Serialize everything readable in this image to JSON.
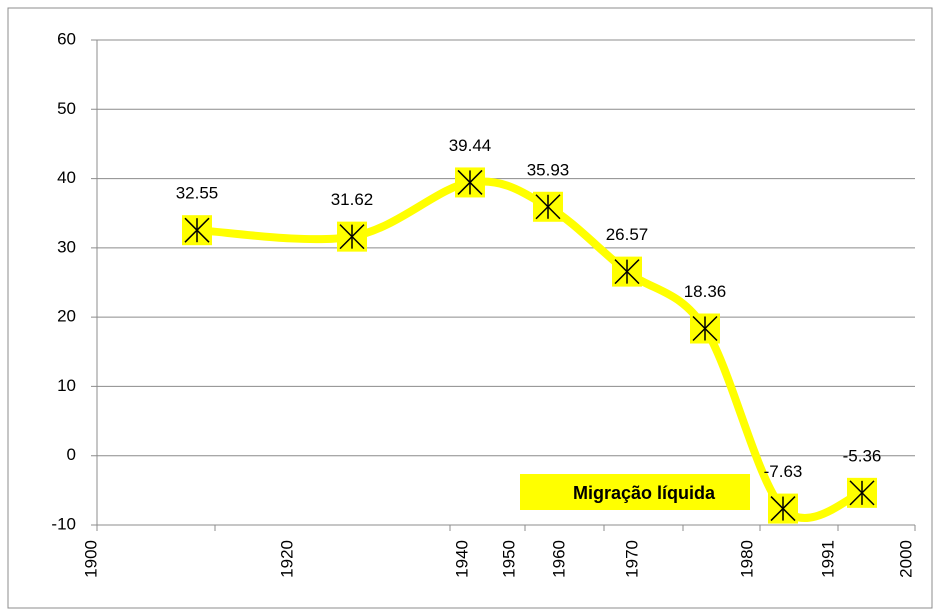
{
  "chart_data": {
    "type": "line",
    "categories": [
      null,
      null,
      null,
      null,
      null,
      null,
      null,
      null
    ],
    "series": [
      {
        "name": "Migração líquida",
        "color": "#ffff00",
        "values": [
          32.55,
          31.62,
          39.44,
          35.93,
          26.57,
          18.36,
          -7.63,
          -5.36
        ]
      }
    ],
    "x_labels": [
      "1900",
      "1920",
      "1940",
      "1950",
      "1960",
      "1970",
      "1980",
      "1991",
      "2000"
    ],
    "ylim": [
      -10,
      60
    ],
    "yticks": [
      -10,
      0,
      10,
      20,
      30,
      40,
      50,
      60
    ],
    "grid": true
  }
}
